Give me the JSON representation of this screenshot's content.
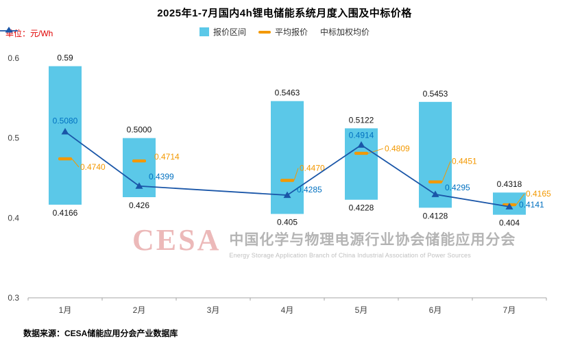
{
  "title": "2025年1-7月国内4h锂电储能系统月度入围及中标价格",
  "unit_label": "单位：元/Wh",
  "legend": [
    {
      "label": "报价区间"
    },
    {
      "label": "平均报价"
    },
    {
      "label": "中标加权均价"
    }
  ],
  "source": "数据来源：CESA储能应用分会产业数据库",
  "watermark": {
    "logo": "CESA",
    "cn": "中国化学与物理电源行业协会储能应用分会",
    "en": "Energy Storage Application Branch of China Industrial Association of Power Sources"
  },
  "colors": {
    "bar": "#5bc8e8",
    "avg": "#f39800",
    "weighted_line": "#1a56a8",
    "weighted_label": "#0070c0",
    "axis": "#a6a6a6"
  },
  "chart_data": {
    "type": "bar",
    "title": "2025年1-7月国内4h锂电储能系统月度入围及中标价格",
    "ylabel": "元/Wh",
    "ylim": [
      0.3,
      0.6
    ],
    "yticks": [
      0.6,
      0.5,
      0.4,
      0.3
    ],
    "grid": false,
    "legend_position": "top",
    "categories": [
      "1月",
      "2月",
      "3月",
      "4月",
      "5月",
      "6月",
      "7月"
    ],
    "series": [
      {
        "name": "报价区间",
        "type": "range_bar",
        "low": [
          0.4166,
          0.426,
          null,
          0.405,
          0.4228,
          0.4128,
          0.404
        ],
        "high": [
          0.59,
          0.5,
          null,
          0.5463,
          0.5122,
          0.5453,
          0.4318
        ],
        "low_labels": [
          "0.4166",
          "0.426",
          null,
          "0.405",
          "0.4228",
          "0.4128",
          "0.404"
        ],
        "high_labels": [
          "0.59",
          "0.5000",
          null,
          "0.5463",
          "0.5122",
          "0.5453",
          "0.4318"
        ]
      },
      {
        "name": "平均报价",
        "type": "dash_marker",
        "values": [
          0.474,
          0.4714,
          null,
          0.447,
          0.4809,
          0.4451,
          0.4165
        ],
        "labels": [
          "0.4740",
          "0.4714",
          null,
          "0.4470",
          "0.4809",
          "0.4451",
          "0.4165"
        ]
      },
      {
        "name": "中标加权均价",
        "type": "line",
        "values": [
          0.508,
          0.4399,
          null,
          0.4285,
          0.4914,
          0.4295,
          0.4141
        ],
        "labels": [
          "0.5080",
          "0.4399",
          null,
          "0.4285",
          "0.4914",
          "0.4295",
          "0.4141"
        ]
      }
    ]
  }
}
